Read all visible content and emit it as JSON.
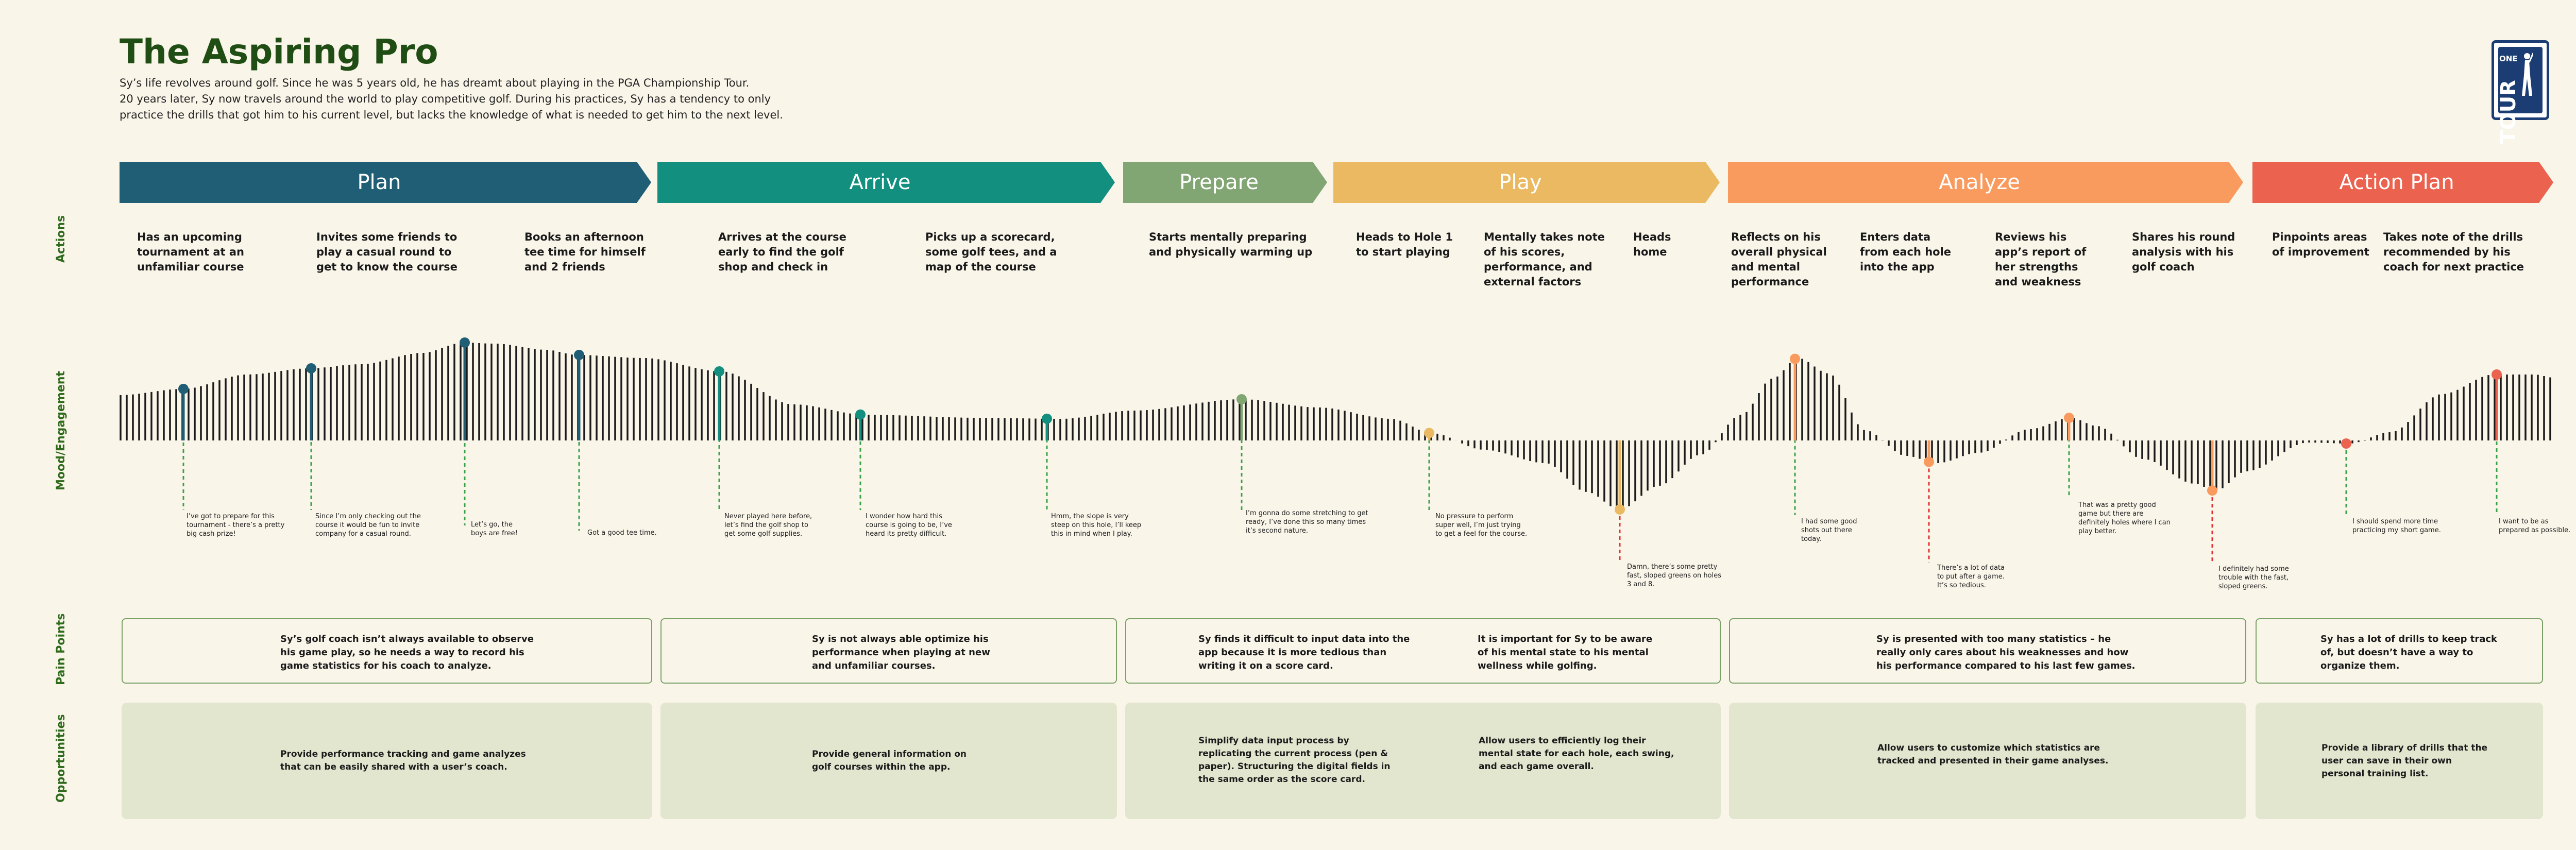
{
  "header": {
    "title": "The Aspiring Pro",
    "intro": [
      "Sy’s life revolves around golf. Since he was 5 years old, he has dreamt about playing in the PGA Championship Tour.",
      "20 years later, Sy now travels around the world to play competitive golf. During his practices, Sy has a tendency to only",
      "practice the drills that got him to his current level, but lacks the knowledge of what is needed to get him to the next level."
    ],
    "logo_text": [
      "ONE",
      "TOUR"
    ]
  },
  "row_labels": {
    "actions": "Actions",
    "mood": "Mood/Engagement",
    "pain": "Pain Points",
    "opportunities": "Opportunities"
  },
  "stages": [
    {
      "label": "Plan",
      "color": "#1f5e75"
    },
    {
      "label": "Arrive",
      "color": "#138f80"
    },
    {
      "label": "Prepare",
      "color": "#82a574"
    },
    {
      "label": "Play",
      "color": "#ebb961"
    },
    {
      "label": "Analyze",
      "color": "#f99a5e"
    },
    {
      "label": "Action Plan",
      "color": "#eb624f"
    }
  ],
  "actions": [
    [
      "Has an upcoming",
      "tournament at an",
      "unfamiliar course"
    ],
    [
      "Invites some friends to",
      "play a casual round to",
      "get to know the course"
    ],
    [
      "Books an afternoon",
      "tee time for himself",
      "and 2 friends"
    ],
    [
      "Arrives at the course",
      "early to find the golf",
      "shop and check in"
    ],
    [
      "Picks up a scorecard,",
      "some golf tees, and a",
      "map of the course"
    ],
    [
      "Starts mentally preparing",
      "and physically warming up"
    ],
    [
      "Heads to Hole 1",
      "to start playing"
    ],
    [
      "Mentally takes note",
      "of his scores,",
      "performance, and",
      "external factors"
    ],
    [
      "Heads",
      "home"
    ],
    [
      "Reflects on his",
      "overall physical",
      "and mental",
      "performance"
    ],
    [
      "Enters data",
      "from each hole",
      "into the app"
    ],
    [
      "Reviews his",
      "app’s report of",
      "her strengths",
      "and weakness"
    ],
    [
      "Shares his round",
      "analysis with his",
      "golf coach"
    ],
    [
      "Pinpoints areas",
      "of improvement"
    ],
    [
      "Takes note of the drills",
      "recommended by his",
      "coach for next practice"
    ]
  ],
  "quotes": [
    [
      "I’ve got to prepare for this",
      "tournament - there’s a pretty",
      "big cash prize!"
    ],
    [
      "Since I’m only checking out the",
      "course it would be fun to invite",
      "company for a casual round."
    ],
    [
      "Let’s go, the",
      "boys are free!"
    ],
    [
      "Got a good tee time."
    ],
    [
      "Never played here before,",
      "let’s find the golf shop to",
      "get some golf supplies."
    ],
    [
      "I wonder how hard this",
      "course is going to be, I’ve",
      "heard its pretty difficult."
    ],
    [
      "Hmm, the slope is very",
      "steep on this hole, I’ll keep",
      "this in mind when I play."
    ],
    [
      "I’m gonna do some stretching to get",
      "ready, I’ve done this so many times",
      "it’s second nature."
    ],
    [
      "No pressure to perform",
      "super well, I’m just trying",
      "to get a feel for the course."
    ],
    [
      "Damn, there’s some pretty",
      "fast, sloped greens on holes",
      "3 and 8."
    ],
    [
      "I had some good",
      "shots out there",
      "today."
    ],
    [
      "There’s a lot of data",
      "to put after a game.",
      "It’s so tedious."
    ],
    [
      "That was a pretty good",
      "game but there are",
      "definitely holes where I can",
      "play better."
    ],
    [
      "I definitely had some",
      "trouble with the fast,",
      "sloped greens."
    ],
    [
      "I should spend more time",
      "practicing my short game."
    ],
    [
      "I want to be as",
      "prepared as possible."
    ]
  ],
  "pain_points": [
    [
      "Sy’s golf coach isn’t always available to observe",
      "his game play, so he needs a way to record his",
      "game statistics for his coach to analyze."
    ],
    [
      "Sy is not always able optimize his",
      "performance when playing at new",
      "and unfamiliar courses."
    ],
    [
      "Sy finds it difficult to input data into the",
      "app because it is more tedious than",
      "writing it on a score card."
    ],
    [
      "It is important for Sy to be aware",
      "of his mental state to his mental",
      "wellness while golfing."
    ],
    [
      "Sy is presented with too many statistics – he",
      "really only cares about his weaknesses and how",
      "his performance compared to his last few games."
    ],
    [
      "Sy has a lot of drills to keep track",
      "of, but doesn’t have a way to",
      "organize them."
    ]
  ],
  "opportunities": [
    [
      "Provide performance tracking and game analyzes",
      "that can be easily shared with a user’s coach."
    ],
    [
      "Provide general information on",
      "golf courses within the app."
    ],
    [
      "Simplify data input process by",
      "replicating the current process (pen &",
      "paper). Structuring the digital fields in",
      "the same order as the score card."
    ],
    [
      "Allow users to efficiently log their",
      "mental state for each hole, each swing,",
      "and each game overall."
    ],
    [
      "Allow users to customize which statistics are",
      "tracked and presented in their game analyses."
    ],
    [
      "Provide a library of drills that the",
      "user can save in their own",
      "personal training list."
    ]
  ],
  "colors": {
    "accent_green": "#2f6b1c",
    "title_green": "#1f4d14",
    "positive_line": "#3aa14a",
    "negative_line": "#e03030",
    "opportunity_fill": "#e2e6cf"
  }
}
